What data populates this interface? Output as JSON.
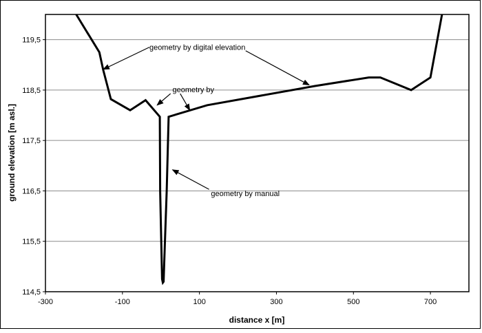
{
  "chart_data": {
    "type": "line",
    "title": "",
    "xlabel": "distance x [m]",
    "ylabel": "ground elevation [m asl.]",
    "xlim": [
      -300,
      800
    ],
    "ylim": [
      114.5,
      120.0
    ],
    "x_ticks": [
      -300,
      -100,
      100,
      300,
      500,
      700
    ],
    "x_tick_labels": [
      "-300",
      "-100",
      "100",
      "300",
      "500",
      "700"
    ],
    "y_ticks": [
      114.5,
      115.5,
      116.5,
      117.5,
      118.5,
      119.5
    ],
    "y_tick_labels": [
      "114,5",
      "115,5",
      "116,5",
      "117,5",
      "118,5",
      "119,5"
    ],
    "grid": "horizontal",
    "legend": "none",
    "series": [
      {
        "color": "#000000",
        "x": [
          -220,
          -160,
          -150,
          -130,
          -80,
          -40,
          -3,
          -2,
          0,
          3,
          5,
          7,
          10,
          15,
          20,
          120,
          400,
          540,
          570,
          650,
          700,
          730
        ],
        "y": [
          120.0,
          119.25,
          118.9,
          118.32,
          118.1,
          118.3,
          117.97,
          116.5,
          115.8,
          114.75,
          114.68,
          114.7,
          115.4,
          116.5,
          117.97,
          118.2,
          118.58,
          118.75,
          118.75,
          118.5,
          118.75,
          120.0
        ]
      }
    ],
    "annotations": [
      {
        "text": "geometry by digital elevation",
        "x": -30,
        "y": 119.35
      },
      {
        "text": "geometry by",
        "x": 30,
        "y": 118.51
      },
      {
        "text": "geometry by manual",
        "x": 130,
        "y": 116.45
      }
    ],
    "arrows": [
      {
        "from": [
          -30,
          119.35
        ],
        "to": [
          -150,
          118.91
        ]
      },
      {
        "from": [
          220,
          119.28
        ],
        "to": [
          385,
          118.6
        ]
      },
      {
        "from": [
          25,
          118.43
        ],
        "to": [
          -10,
          118.2
        ]
      },
      {
        "from": [
          50,
          118.43
        ],
        "to": [
          75,
          118.1
        ]
      },
      {
        "from": [
          125,
          116.53
        ],
        "to": [
          30,
          116.92
        ]
      }
    ]
  }
}
